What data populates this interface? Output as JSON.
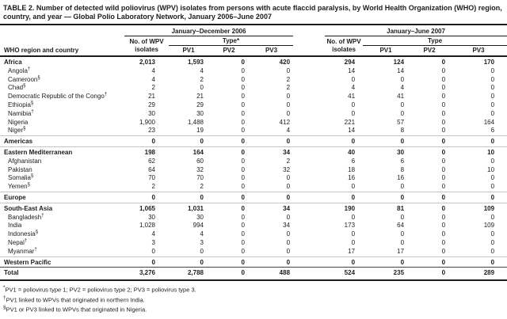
{
  "title": "TABLE 2. Number of detected wild poliovirus (WPV) isolates from persons with acute flaccid paralysis, by World Health Organization (WHO) region, country, and year — Global Polio Laboratory Network, January 2006–June 2007",
  "table": {
    "row_header": "WHO region and country",
    "groups": [
      {
        "label": "January–December 2006",
        "isolates_header": "No. of WPV isolates",
        "type_header": "Type*",
        "type_cols": [
          "PV1",
          "PV2",
          "PV3"
        ]
      },
      {
        "label": "January–June 2007",
        "isolates_header": "No. of WPV isolates",
        "type_header": "Type",
        "type_cols": [
          "PV1",
          "PV2",
          "PV3"
        ]
      }
    ],
    "rows": [
      {
        "label": "Africa",
        "kind": "region",
        "values": [
          "2,013",
          "1,593",
          "0",
          "420",
          "294",
          "124",
          "0",
          "170"
        ]
      },
      {
        "label": "Angola",
        "sup": "†",
        "kind": "country",
        "values": [
          "4",
          "4",
          "0",
          "0",
          "14",
          "14",
          "0",
          "0"
        ]
      },
      {
        "label": "Cameroon",
        "sup": "§",
        "kind": "country",
        "values": [
          "4",
          "2",
          "0",
          "2",
          "0",
          "0",
          "0",
          "0"
        ]
      },
      {
        "label": "Chad",
        "sup": "§",
        "kind": "country",
        "values": [
          "2",
          "0",
          "0",
          "2",
          "4",
          "4",
          "0",
          "0"
        ]
      },
      {
        "label": "Democratic Republic of the Congo",
        "sup": "†",
        "kind": "country",
        "values": [
          "21",
          "21",
          "0",
          "0",
          "41",
          "41",
          "0",
          "0"
        ]
      },
      {
        "label": "Ethiopia",
        "sup": "§",
        "kind": "country",
        "values": [
          "29",
          "29",
          "0",
          "0",
          "0",
          "0",
          "0",
          "0"
        ]
      },
      {
        "label": "Namibia",
        "sup": "†",
        "kind": "country",
        "values": [
          "30",
          "30",
          "0",
          "0",
          "0",
          "0",
          "0",
          "0"
        ]
      },
      {
        "label": "Nigeria",
        "kind": "country",
        "values": [
          "1,900",
          "1,488",
          "0",
          "412",
          "221",
          "57",
          "0",
          "164"
        ]
      },
      {
        "label": "Niger",
        "sup": "§",
        "kind": "country",
        "values": [
          "23",
          "19",
          "0",
          "4",
          "14",
          "8",
          "0",
          "6"
        ]
      },
      {
        "label": "Americas",
        "kind": "region",
        "values": [
          "0",
          "0",
          "0",
          "0",
          "0",
          "0",
          "0",
          "0"
        ]
      },
      {
        "label": "Eastern Mediterranean",
        "kind": "region",
        "values": [
          "198",
          "164",
          "0",
          "34",
          "40",
          "30",
          "0",
          "10"
        ]
      },
      {
        "label": "Afghanistan",
        "kind": "country",
        "values": [
          "62",
          "60",
          "0",
          "2",
          "6",
          "6",
          "0",
          "0"
        ]
      },
      {
        "label": "Pakistan",
        "kind": "country",
        "values": [
          "64",
          "32",
          "0",
          "32",
          "18",
          "8",
          "0",
          "10"
        ]
      },
      {
        "label": "Somalia",
        "sup": "§",
        "kind": "country",
        "values": [
          "70",
          "70",
          "0",
          "0",
          "16",
          "16",
          "0",
          "0"
        ]
      },
      {
        "label": "Yemen",
        "sup": "§",
        "kind": "country",
        "values": [
          "2",
          "2",
          "0",
          "0",
          "0",
          "0",
          "0",
          "0"
        ]
      },
      {
        "label": "Europe",
        "kind": "region",
        "values": [
          "0",
          "0",
          "0",
          "0",
          "0",
          "0",
          "0",
          "0"
        ]
      },
      {
        "label": "South-East Asia",
        "kind": "region",
        "values": [
          "1,065",
          "1,031",
          "0",
          "34",
          "190",
          "81",
          "0",
          "109"
        ]
      },
      {
        "label": "Bangladesh",
        "sup": "†",
        "kind": "country",
        "values": [
          "30",
          "30",
          "0",
          "0",
          "0",
          "0",
          "0",
          "0"
        ]
      },
      {
        "label": "India",
        "kind": "country",
        "values": [
          "1,028",
          "994",
          "0",
          "34",
          "173",
          "64",
          "0",
          "109"
        ]
      },
      {
        "label": "Indonesia",
        "sup": "§",
        "kind": "country",
        "values": [
          "4",
          "4",
          "0",
          "0",
          "0",
          "0",
          "0",
          "0"
        ]
      },
      {
        "label": "Nepal",
        "sup": "†",
        "kind": "country",
        "values": [
          "3",
          "3",
          "0",
          "0",
          "0",
          "0",
          "0",
          "0"
        ]
      },
      {
        "label": "Myanmar",
        "sup": "†",
        "kind": "country",
        "values": [
          "0",
          "0",
          "0",
          "0",
          "17",
          "17",
          "0",
          "0"
        ]
      },
      {
        "label": "Western Pacific",
        "kind": "region",
        "values": [
          "0",
          "0",
          "0",
          "0",
          "0",
          "0",
          "0",
          "0"
        ]
      },
      {
        "label": "Total",
        "kind": "total",
        "values": [
          "3,276",
          "2,788",
          "0",
          "488",
          "524",
          "235",
          "0",
          "289"
        ]
      }
    ]
  },
  "footnotes": [
    {
      "marker": "*",
      "text": "PV1 = poliovirus type 1; PV2 = poliovirus type 2; PV3 = poliovirus type 3."
    },
    {
      "marker": "†",
      "text": "PV1 linked to WPVs that originated in northern India."
    },
    {
      "marker": "§",
      "text": "PV1 or PV3 linked to WPVs that originated in Nigeria."
    }
  ]
}
